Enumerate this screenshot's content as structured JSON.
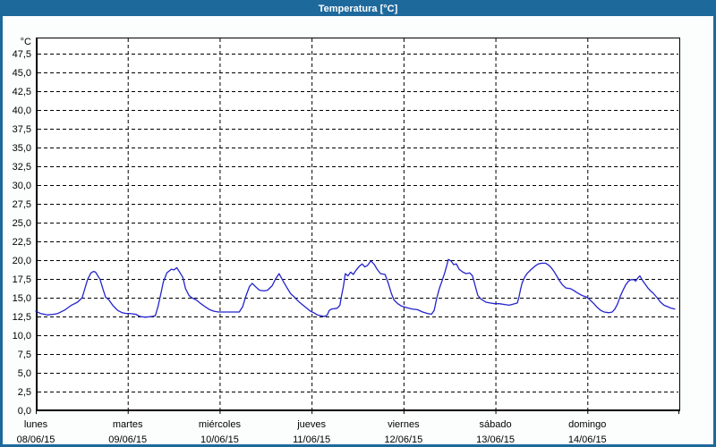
{
  "window": {
    "title": "Temperatura [°C]",
    "colors": {
      "frame": "#1E699C",
      "title_text": "#FFFFFF",
      "background": "#FCFDFD"
    }
  },
  "chart_data": {
    "type": "line",
    "title": "Temperatura [°C]",
    "ylabel": "°C",
    "legend": "none",
    "y_axis": {
      "unit": "°C",
      "tick_start": 0,
      "tick_end": 47.5,
      "tick_step": 2.5,
      "ylim": [
        0,
        49.6
      ],
      "decimal_separator": ",",
      "grid": "dashed"
    },
    "x_axis": {
      "grid": "dashed",
      "hours_total": 168,
      "days": [
        {
          "name": "lunes",
          "date": "08/06/15"
        },
        {
          "name": "martes",
          "date": "09/06/15"
        },
        {
          "name": "miércoles",
          "date": "10/06/15"
        },
        {
          "name": "jueves",
          "date": "11/06/15"
        },
        {
          "name": "viernes",
          "date": "12/06/15"
        },
        {
          "name": "sábado",
          "date": "13/06/15"
        },
        {
          "name": "domingo",
          "date": "14/06/15"
        }
      ]
    },
    "series": [
      {
        "name": "Temperatura",
        "unit": "°C",
        "color": "#2323CC",
        "points_hours_temp": [
          [
            0,
            13.2
          ],
          [
            1.2,
            12.9
          ],
          [
            3,
            12.7
          ],
          [
            4.7,
            12.8
          ],
          [
            5.8,
            12.9
          ],
          [
            7.7,
            13.4
          ],
          [
            9.3,
            14.0
          ],
          [
            10.9,
            14.4
          ],
          [
            12.1,
            15.0
          ],
          [
            12.8,
            16.2
          ],
          [
            13.5,
            17.4
          ],
          [
            14.4,
            18.3
          ],
          [
            15.1,
            18.5
          ],
          [
            15.6,
            18.4
          ],
          [
            16.8,
            17.4
          ],
          [
            17.5,
            16.2
          ],
          [
            18.2,
            15.1
          ],
          [
            19.1,
            14.7
          ],
          [
            20.2,
            13.9
          ],
          [
            21.4,
            13.3
          ],
          [
            22.6,
            13.0
          ],
          [
            23.5,
            12.9
          ],
          [
            24.4,
            12.9
          ],
          [
            26.1,
            12.8
          ],
          [
            27.2,
            12.5
          ],
          [
            28.6,
            12.4
          ],
          [
            30.3,
            12.5
          ],
          [
            31.2,
            12.6
          ],
          [
            31.9,
            13.8
          ],
          [
            32.6,
            15.4
          ],
          [
            33.3,
            17.1
          ],
          [
            34.2,
            18.3
          ],
          [
            35.4,
            18.8
          ],
          [
            36.1,
            18.7
          ],
          [
            36.8,
            19.0
          ],
          [
            37.7,
            18.3
          ],
          [
            38.4,
            17.7
          ],
          [
            39.1,
            16.2
          ],
          [
            40,
            15.3
          ],
          [
            40.7,
            15.0
          ],
          [
            41.9,
            14.7
          ],
          [
            43.1,
            14.2
          ],
          [
            44.2,
            13.8
          ],
          [
            45.4,
            13.4
          ],
          [
            46.5,
            13.2
          ],
          [
            47.7,
            13.1
          ],
          [
            48.9,
            13.1
          ],
          [
            51.2,
            13.1
          ],
          [
            53.1,
            13.1
          ],
          [
            54,
            13.8
          ],
          [
            54.9,
            15.3
          ],
          [
            55.8,
            16.5
          ],
          [
            56.5,
            16.9
          ],
          [
            57.5,
            16.4
          ],
          [
            58.4,
            16.0
          ],
          [
            59.6,
            15.9
          ],
          [
            60.5,
            16.0
          ],
          [
            61.7,
            16.6
          ],
          [
            62.6,
            17.5
          ],
          [
            63.5,
            18.2
          ],
          [
            64.7,
            17.1
          ],
          [
            65.6,
            16.3
          ],
          [
            66.6,
            15.5
          ],
          [
            67.5,
            15.1
          ],
          [
            68.4,
            14.6
          ],
          [
            69.3,
            14.2
          ],
          [
            70.5,
            13.7
          ],
          [
            71.7,
            13.2
          ],
          [
            72.6,
            13.0
          ],
          [
            73.5,
            12.7
          ],
          [
            74.5,
            12.6
          ],
          [
            75.4,
            12.5
          ],
          [
            76.1,
            12.7
          ],
          [
            76.6,
            13.3
          ],
          [
            77.3,
            13.5
          ],
          [
            78.7,
            13.6
          ],
          [
            79.4,
            14.0
          ],
          [
            79.8,
            15.2
          ],
          [
            80.3,
            16.5
          ],
          [
            80.8,
            18.2
          ],
          [
            81.5,
            17.9
          ],
          [
            82.2,
            18.4
          ],
          [
            82.9,
            18.1
          ],
          [
            83.5,
            18.6
          ],
          [
            84.5,
            19.2
          ],
          [
            85.2,
            19.5
          ],
          [
            85.9,
            19.1
          ],
          [
            86.6,
            19.3
          ],
          [
            87.5,
            19.9
          ],
          [
            88.4,
            19.4
          ],
          [
            89.1,
            18.8
          ],
          [
            90,
            18.2
          ],
          [
            91.2,
            18.1
          ],
          [
            92.1,
            16.8
          ],
          [
            92.8,
            15.6
          ],
          [
            93.5,
            14.7
          ],
          [
            94.5,
            14.2
          ],
          [
            95.4,
            13.9
          ],
          [
            96.6,
            13.7
          ],
          [
            98.2,
            13.5
          ],
          [
            99.6,
            13.4
          ],
          [
            101,
            13.1
          ],
          [
            102.2,
            12.9
          ],
          [
            103.3,
            12.8
          ],
          [
            104,
            13.3
          ],
          [
            104.7,
            15.0
          ],
          [
            105.4,
            16.3
          ],
          [
            106.1,
            17.3
          ],
          [
            106.8,
            18.4
          ],
          [
            107.3,
            19.3
          ],
          [
            107.7,
            20.1
          ],
          [
            108.4,
            19.9
          ],
          [
            109.1,
            19.4
          ],
          [
            109.8,
            19.5
          ],
          [
            110.5,
            18.8
          ],
          [
            111.5,
            18.4
          ],
          [
            112.4,
            18.2
          ],
          [
            113.3,
            18.3
          ],
          [
            114,
            17.9
          ],
          [
            114.7,
            16.6
          ],
          [
            115.4,
            15.3
          ],
          [
            116.3,
            14.8
          ],
          [
            117.5,
            14.4
          ],
          [
            118.6,
            14.3
          ],
          [
            119.8,
            14.2
          ],
          [
            121,
            14.2
          ],
          [
            122.4,
            14.1
          ],
          [
            123.6,
            14.0
          ],
          [
            124.7,
            14.15
          ],
          [
            125.7,
            14.3
          ],
          [
            126.1,
            15.0
          ],
          [
            126.6,
            16.2
          ],
          [
            127,
            17.0
          ],
          [
            127.7,
            17.8
          ],
          [
            128.4,
            18.3
          ],
          [
            129.4,
            18.8
          ],
          [
            130.3,
            19.2
          ],
          [
            131.2,
            19.5
          ],
          [
            132.2,
            19.6
          ],
          [
            133.1,
            19.6
          ],
          [
            134,
            19.3
          ],
          [
            134.7,
            18.9
          ],
          [
            135.4,
            18.4
          ],
          [
            136.1,
            17.8
          ],
          [
            136.8,
            17.2
          ],
          [
            137.5,
            16.7
          ],
          [
            138.4,
            16.3
          ],
          [
            139.6,
            16.2
          ],
          [
            140.3,
            16.0
          ],
          [
            141.2,
            15.7
          ],
          [
            142.2,
            15.4
          ],
          [
            143.1,
            15.2
          ],
          [
            143.8,
            15.1
          ],
          [
            144.7,
            14.7
          ],
          [
            145.7,
            14.2
          ],
          [
            146.6,
            13.7
          ],
          [
            147.5,
            13.3
          ],
          [
            148.4,
            13.1
          ],
          [
            149.6,
            13.0
          ],
          [
            150.5,
            13.1
          ],
          [
            151.2,
            13.5
          ],
          [
            151.9,
            14.2
          ],
          [
            152.6,
            15.2
          ],
          [
            153.3,
            16.0
          ],
          [
            154,
            16.7
          ],
          [
            154.7,
            17.2
          ],
          [
            155.4,
            17.4
          ],
          [
            156.1,
            17.4
          ],
          [
            156.6,
            17.2
          ],
          [
            157.3,
            17.7
          ],
          [
            157.7,
            17.9
          ],
          [
            158.4,
            17.3
          ],
          [
            159.1,
            16.8
          ],
          [
            159.8,
            16.3
          ],
          [
            160.5,
            15.9
          ],
          [
            161.2,
            15.6
          ],
          [
            162.2,
            15.0
          ],
          [
            163.1,
            14.4
          ],
          [
            164,
            14.0
          ],
          [
            165,
            13.8
          ],
          [
            165.9,
            13.6
          ],
          [
            166.8,
            13.5
          ]
        ]
      }
    ]
  }
}
